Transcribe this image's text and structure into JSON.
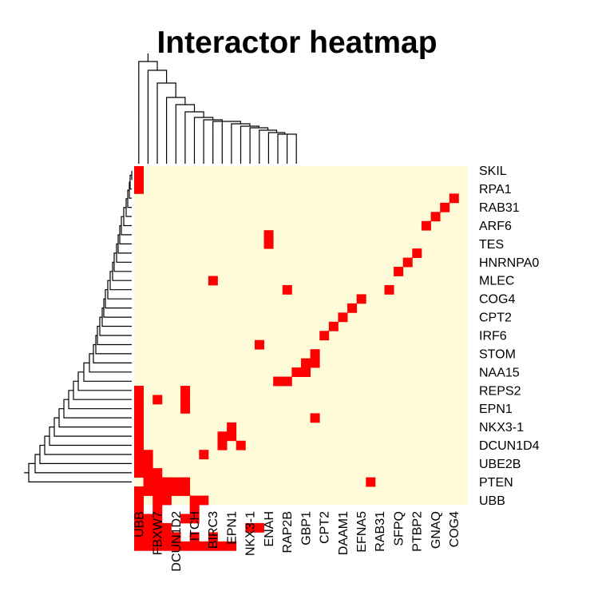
{
  "chart_data": {
    "type": "heatmap",
    "title": "Interactor heatmap",
    "colors": {
      "background": "#fefbd8",
      "cell": "#ff0000",
      "dendrogram": "#000000"
    },
    "columns": [
      "UBB",
      "",
      "FBXW7",
      "",
      "DCUN1D2",
      "",
      "ITCH",
      "",
      "BIRC3",
      "",
      "EPN1",
      "",
      "NKX3-1",
      "",
      "ENAH",
      "",
      "RAP2B",
      "",
      "GBP1",
      "",
      "CPT2",
      "",
      "DAAM1",
      "",
      "EFNA5",
      "",
      "RAB31",
      "",
      "SFPQ",
      "",
      "PTBP2",
      "",
      "GNAQ",
      "",
      "COG4",
      ""
    ],
    "rows": [
      "SKIL",
      "",
      "RPA1",
      "",
      "RAB31",
      "",
      "ARF6",
      "",
      "TES",
      "",
      "HNRNPA0",
      "",
      "MLEC",
      "",
      "COG4",
      "",
      "CPT2",
      "",
      "IRF6",
      "",
      "STOM",
      "",
      "NAA15",
      "",
      "REPS2",
      "",
      "EPN1",
      "",
      "NKX3-1",
      "",
      "DCUN1D4",
      "",
      "UBE2B",
      "",
      "PTEN",
      "",
      "UBB"
    ],
    "cells": [
      [
        0,
        0
      ],
      [
        1,
        0
      ],
      [
        2,
        0
      ],
      [
        3,
        34
      ],
      [
        4,
        33
      ],
      [
        5,
        32
      ],
      [
        6,
        31
      ],
      [
        7,
        14
      ],
      [
        8,
        14
      ],
      [
        9,
        30
      ],
      [
        10,
        29
      ],
      [
        11,
        28
      ],
      [
        12,
        8
      ],
      [
        13,
        16
      ],
      [
        13,
        27
      ],
      [
        14,
        24
      ],
      [
        15,
        23
      ],
      [
        16,
        22
      ],
      [
        17,
        21
      ],
      [
        18,
        20
      ],
      [
        19,
        13
      ],
      [
        20,
        19
      ],
      [
        21,
        18
      ],
      [
        21,
        19
      ],
      [
        22,
        17
      ],
      [
        22,
        18
      ],
      [
        23,
        15
      ],
      [
        23,
        16
      ],
      [
        24,
        0
      ],
      [
        24,
        5
      ],
      [
        25,
        0
      ],
      [
        25,
        2
      ],
      [
        25,
        5
      ],
      [
        26,
        0
      ],
      [
        26,
        5
      ],
      [
        27,
        0
      ],
      [
        27,
        19
      ],
      [
        28,
        0
      ],
      [
        28,
        10
      ],
      [
        29,
        0
      ],
      [
        29,
        9
      ],
      [
        29,
        10
      ],
      [
        30,
        0
      ],
      [
        30,
        9
      ],
      [
        30,
        11
      ],
      [
        31,
        0
      ],
      [
        31,
        1
      ],
      [
        31,
        7
      ],
      [
        32,
        0
      ],
      [
        32,
        1
      ],
      [
        33,
        0
      ],
      [
        33,
        1
      ],
      [
        33,
        2
      ],
      [
        34,
        1
      ],
      [
        34,
        2
      ],
      [
        34,
        3
      ],
      [
        34,
        4
      ],
      [
        34,
        5
      ],
      [
        34,
        25
      ],
      [
        35,
        0
      ],
      [
        35,
        1
      ],
      [
        35,
        2
      ],
      [
        35,
        3
      ],
      [
        35,
        4
      ],
      [
        35,
        5
      ],
      [
        36,
        0
      ],
      [
        36,
        2
      ],
      [
        36,
        3
      ],
      [
        36,
        6
      ],
      [
        36,
        7
      ],
      [
        37,
        0
      ],
      [
        37,
        2
      ],
      [
        37,
        6
      ],
      [
        38,
        0
      ],
      [
        38,
        1
      ],
      [
        38,
        2
      ],
      [
        38,
        5
      ],
      [
        38,
        6
      ],
      [
        39,
        0
      ],
      [
        39,
        1
      ],
      [
        39,
        2
      ],
      [
        39,
        3
      ],
      [
        39,
        12
      ],
      [
        39,
        13
      ],
      [
        40,
        0
      ],
      [
        40,
        1
      ],
      [
        40,
        2
      ],
      [
        40,
        3
      ],
      [
        40,
        4
      ],
      [
        40,
        6
      ],
      [
        40,
        8
      ],
      [
        41,
        0
      ],
      [
        41,
        1
      ],
      [
        41,
        2
      ],
      [
        41,
        3
      ],
      [
        41,
        4
      ],
      [
        41,
        5
      ],
      [
        41,
        6
      ],
      [
        41,
        7
      ],
      [
        41,
        8
      ],
      [
        41,
        9
      ],
      [
        41,
        10
      ]
    ]
  }
}
